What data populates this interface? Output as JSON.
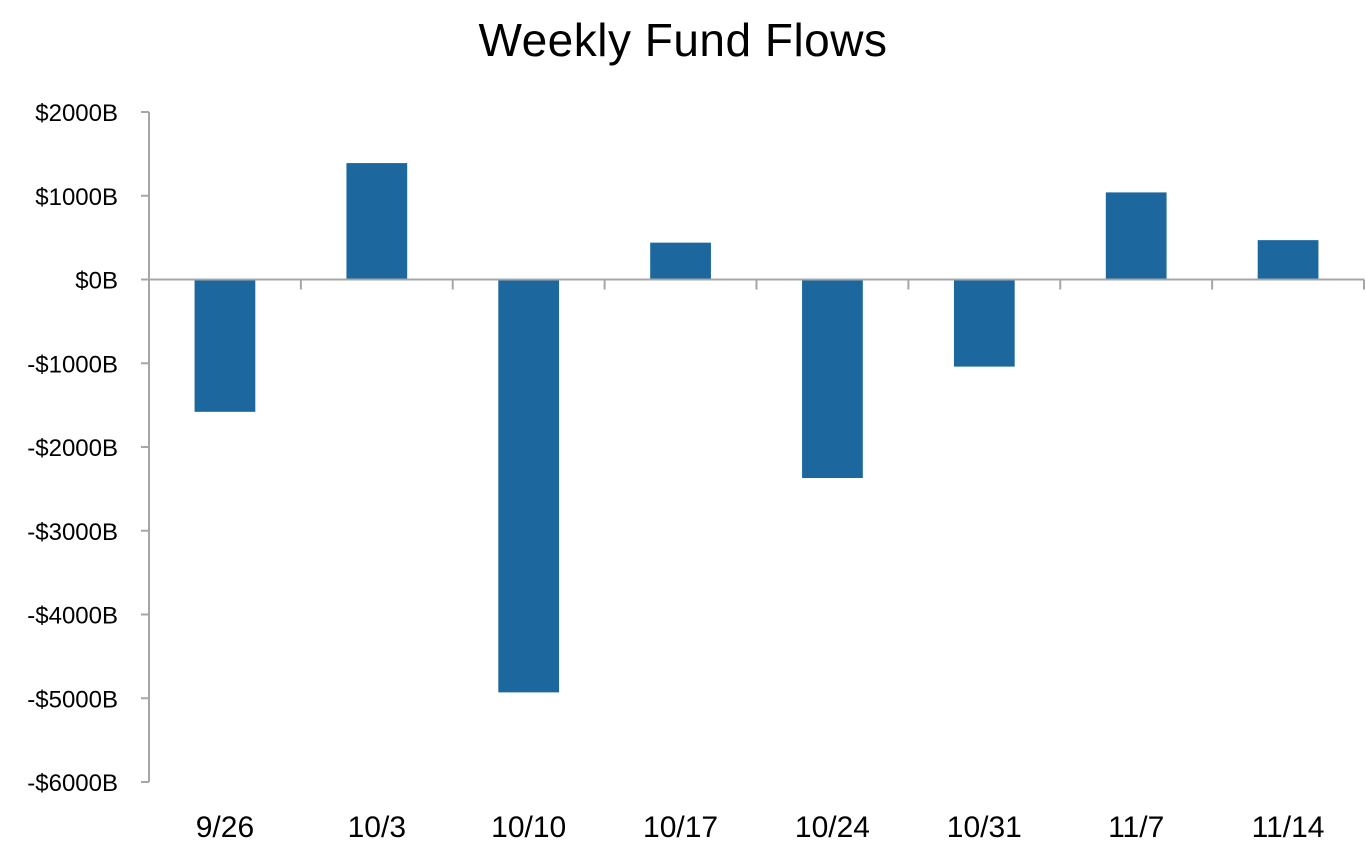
{
  "chart_data": {
    "type": "bar",
    "title": "Weekly Fund Flows",
    "xlabel": "",
    "ylabel": "",
    "categories": [
      "9/26",
      "10/3",
      "10/10",
      "10/17",
      "10/24",
      "10/31",
      "11/7",
      "11/14"
    ],
    "values": [
      -1580,
      1390,
      -4930,
      440,
      -2370,
      -1040,
      1040,
      470
    ],
    "ylim": [
      -6000,
      2000
    ],
    "yticks": [
      2000,
      1000,
      0,
      -1000,
      -2000,
      -3000,
      -4000,
      -5000,
      -6000
    ],
    "ytick_labels": [
      "$2000B",
      "$1000B",
      "$0B",
      "-$1000B",
      "-$2000B",
      "-$3000B",
      "-$4000B",
      "-$5000B",
      "-$6000B"
    ],
    "bar_color": "#1b679e",
    "axis_color": "#a6a6a6",
    "grid": false,
    "legend": "none"
  }
}
